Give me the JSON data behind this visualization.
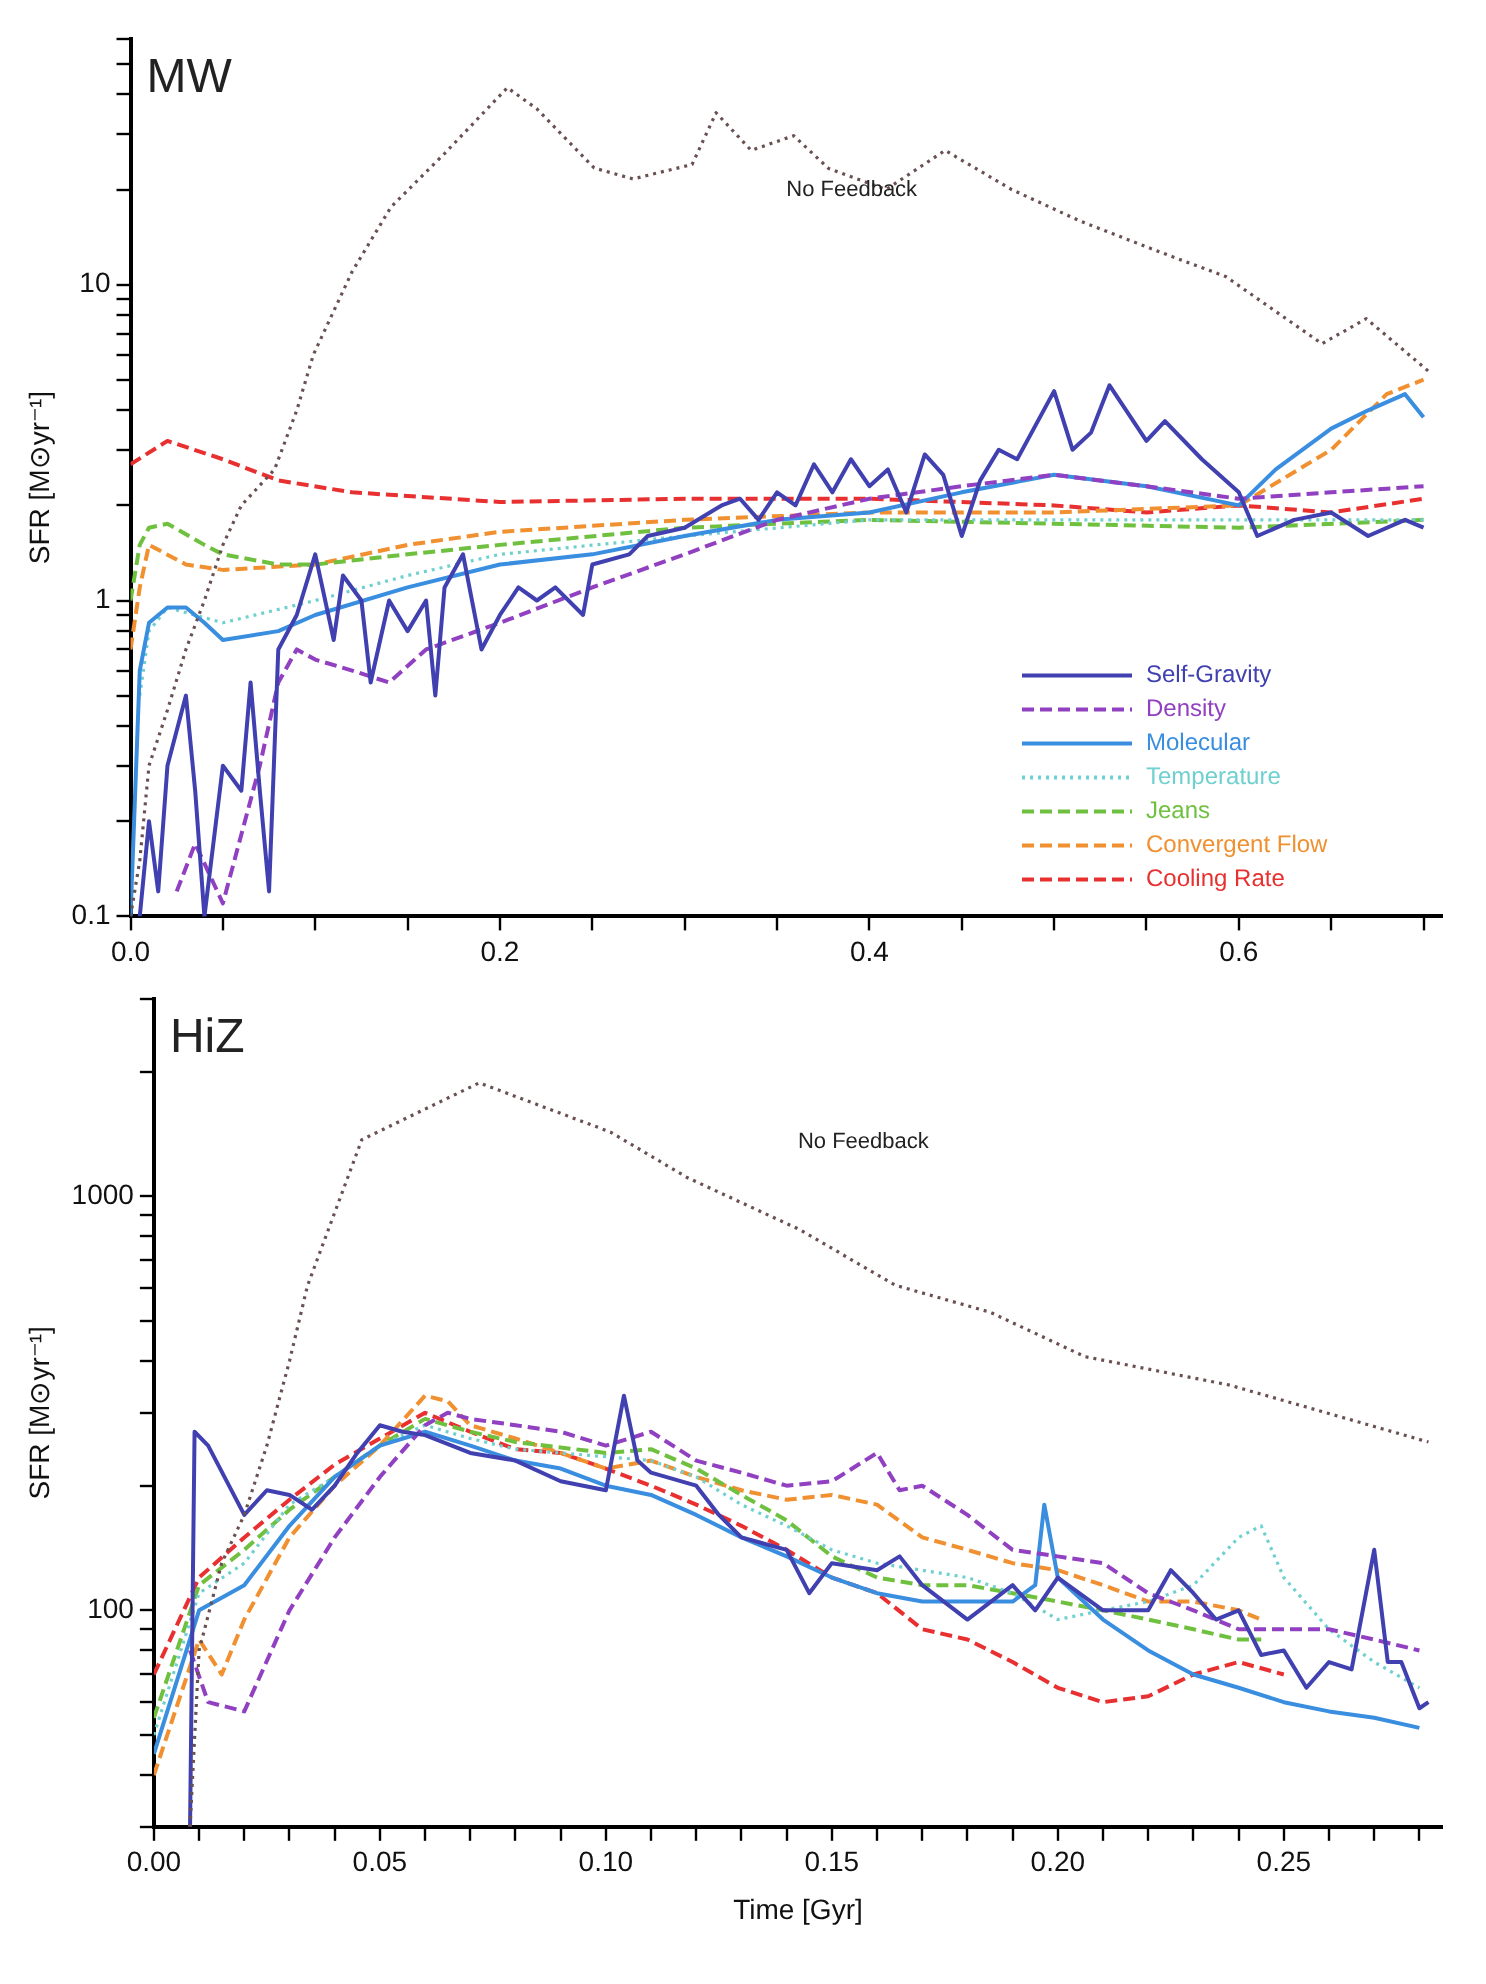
{
  "chart_data": [
    {
      "type": "line",
      "ylabel": "SFR [M⊙yr⁻¹]",
      "log": "y",
      "grid": false,
      "legend": "bottom right",
      "xlim": [
        0,
        0.71
      ],
      "xticks": [
        {
          "value": 0,
          "label": "0.0"
        },
        {
          "value": 0.05,
          "label": null
        },
        {
          "value": 0.1,
          "label": null
        },
        {
          "value": 0.15,
          "label": null
        },
        {
          "value": 0.2,
          "label": "0.2"
        },
        {
          "value": 0.25,
          "label": null
        },
        {
          "value": 0.3,
          "label": null
        },
        {
          "value": 0.35,
          "label": null
        },
        {
          "value": 0.4,
          "label": "0.4"
        },
        {
          "value": 0.45,
          "label": null
        },
        {
          "value": 0.5,
          "label": null
        },
        {
          "value": 0.55,
          "label": null
        },
        {
          "value": 0.6,
          "label": "0.6"
        },
        {
          "value": 0.65,
          "label": null
        },
        {
          "value": 0.7,
          "label": null
        }
      ],
      "ylim": [
        0.1,
        60
      ],
      "yticks": [
        0.1,
        {
          "value": 0.2,
          "label": null
        },
        {
          "value": 0.3,
          "label": null
        },
        {
          "value": 0.4,
          "label": null
        },
        {
          "value": 0.5,
          "label": null
        },
        {
          "value": 0.6,
          "label": null
        },
        {
          "value": 0.7,
          "label": null
        },
        {
          "value": 0.8,
          "label": null
        },
        {
          "value": 0.9,
          "label": null
        },
        1,
        {
          "value": 2,
          "label": null
        },
        {
          "value": 3,
          "label": null
        },
        {
          "value": 4,
          "label": null
        },
        {
          "value": 5,
          "label": null
        },
        {
          "value": 6,
          "label": null
        },
        {
          "value": 7,
          "label": null
        },
        {
          "value": 8,
          "label": null
        },
        {
          "value": 9,
          "label": null
        },
        10,
        {
          "value": 20,
          "label": null
        },
        {
          "value": 30,
          "label": null
        },
        {
          "value": 40,
          "label": null
        },
        {
          "value": 50,
          "label": null
        },
        {
          "value": 60,
          "label": null
        }
      ],
      "annotations": [
        "MW",
        "No Feedback"
      ],
      "series": [
        {
          "color": "#6a5050",
          "line_style": "dotted",
          "x": [
            0,
            0.005,
            0.01,
            0.02,
            0.03,
            0.04,
            0.05,
            0.06,
            0.078,
            0.09,
            0.099,
            0.12,
            0.141,
            0.17,
            0.204,
            0.22,
            0.251,
            0.272,
            0.304,
            0.317,
            0.336,
            0.359,
            0.378,
            0.409,
            0.441,
            0.477,
            0.514,
            0.557,
            0.593,
            0.645,
            0.669,
            0.703
          ],
          "values": [
            0.1,
            0.15,
            0.3,
            0.45,
            0.7,
            1.0,
            1.5,
            2.0,
            2.6,
            4.0,
            6.0,
            11,
            17.6,
            26,
            42,
            36,
            23.4,
            21.6,
            24,
            35,
            26.6,
            29.6,
            23.3,
            20,
            26.6,
            20,
            15.9,
            12.7,
            10.6,
            6.5,
            7.8,
            5.3
          ]
        },
        {
          "name": "Self-Gravity",
          "color": "#4040b0",
          "line_style": "solid",
          "x": [
            0.005,
            0.01,
            0.015,
            0.02,
            0.03,
            0.035,
            0.04,
            0.05,
            0.06,
            0.065,
            0.07,
            0.075,
            0.08,
            0.09,
            0.1,
            0.11,
            0.115,
            0.125,
            0.13,
            0.14,
            0.15,
            0.16,
            0.165,
            0.17,
            0.18,
            0.19,
            0.2,
            0.21,
            0.22,
            0.23,
            0.245,
            0.25,
            0.27,
            0.28,
            0.3,
            0.32,
            0.33,
            0.34,
            0.35,
            0.36,
            0.37,
            0.38,
            0.39,
            0.4,
            0.41,
            0.42,
            0.43,
            0.44,
            0.45,
            0.46,
            0.47,
            0.48,
            0.5,
            0.51,
            0.52,
            0.53,
            0.55,
            0.56,
            0.58,
            0.6,
            0.61,
            0.63,
            0.65,
            0.67,
            0.69,
            0.7
          ],
          "values": [
            0.1,
            0.2,
            0.12,
            0.3,
            0.5,
            0.25,
            0.1,
            0.3,
            0.25,
            0.55,
            0.25,
            0.12,
            0.7,
            0.9,
            1.4,
            0.75,
            1.2,
            1.0,
            0.55,
            1.0,
            0.8,
            1.0,
            0.5,
            1.1,
            1.4,
            0.7,
            0.9,
            1.1,
            1.0,
            1.1,
            0.9,
            1.3,
            1.4,
            1.6,
            1.7,
            2.0,
            2.1,
            1.8,
            2.2,
            2.0,
            2.7,
            2.2,
            2.8,
            2.3,
            2.6,
            1.9,
            2.9,
            2.5,
            1.6,
            2.4,
            3.0,
            2.8,
            4.6,
            3.0,
            3.4,
            4.8,
            3.2,
            3.7,
            2.8,
            2.2,
            1.6,
            1.8,
            1.9,
            1.6,
            1.8,
            1.7
          ]
        },
        {
          "name": "Density",
          "color": "#9040c0",
          "line_style": "dashed",
          "x": [
            0.025,
            0.035,
            0.05,
            0.07,
            0.08,
            0.09,
            0.1,
            0.12,
            0.14,
            0.16,
            0.2,
            0.25,
            0.3,
            0.35,
            0.4,
            0.45,
            0.5,
            0.55,
            0.6,
            0.65,
            0.7
          ],
          "values": [
            0.12,
            0.17,
            0.11,
            0.3,
            0.55,
            0.7,
            0.65,
            0.6,
            0.55,
            0.7,
            0.85,
            1.1,
            1.4,
            1.8,
            2.1,
            2.3,
            2.5,
            2.3,
            2.1,
            2.2,
            2.3
          ]
        },
        {
          "name": "Molecular",
          "color": "#3a8ee0",
          "line_style": "solid",
          "x": [
            0,
            0.005,
            0.01,
            0.02,
            0.03,
            0.04,
            0.05,
            0.08,
            0.1,
            0.15,
            0.2,
            0.25,
            0.3,
            0.35,
            0.4,
            0.45,
            0.5,
            0.55,
            0.6,
            0.62,
            0.65,
            0.67,
            0.69,
            0.7
          ],
          "values": [
            0.1,
            0.6,
            0.85,
            0.95,
            0.95,
            0.85,
            0.75,
            0.8,
            0.9,
            1.1,
            1.3,
            1.4,
            1.6,
            1.8,
            1.9,
            2.2,
            2.5,
            2.3,
            2.0,
            2.6,
            3.5,
            4.0,
            4.5,
            3.8
          ]
        },
        {
          "name": "Temperature",
          "color": "#70d0d0",
          "line_style": "dotted",
          "x": [
            0.005,
            0.01,
            0.02,
            0.05,
            0.1,
            0.15,
            0.2,
            0.3,
            0.4,
            0.5,
            0.6,
            0.7
          ],
          "values": [
            0.5,
            0.8,
            0.95,
            0.85,
            1.0,
            1.2,
            1.4,
            1.6,
            1.8,
            1.8,
            1.8,
            1.8
          ]
        },
        {
          "name": "Jeans",
          "color": "#70c040",
          "line_style": "dashed",
          "x": [
            0,
            0.005,
            0.01,
            0.02,
            0.04,
            0.05,
            0.08,
            0.1,
            0.15,
            0.2,
            0.3,
            0.4,
            0.5,
            0.6,
            0.7
          ],
          "values": [
            1.0,
            1.5,
            1.7,
            1.75,
            1.5,
            1.4,
            1.3,
            1.3,
            1.4,
            1.5,
            1.7,
            1.8,
            1.75,
            1.7,
            1.8
          ]
        },
        {
          "name": "Convergent Flow",
          "color": "#f09030",
          "line_style": "dashed",
          "x": [
            0,
            0.005,
            0.01,
            0.03,
            0.05,
            0.1,
            0.15,
            0.2,
            0.3,
            0.4,
            0.5,
            0.6,
            0.65,
            0.68,
            0.7
          ],
          "values": [
            0.7,
            1.1,
            1.5,
            1.3,
            1.25,
            1.3,
            1.5,
            1.65,
            1.8,
            1.9,
            1.9,
            2.0,
            3,
            4.5,
            5.0
          ]
        },
        {
          "name": "Cooling Rate",
          "color": "#e83030",
          "line_style": "dashed",
          "x": [
            0,
            0.02,
            0.05,
            0.08,
            0.12,
            0.2,
            0.3,
            0.4,
            0.5,
            0.55,
            0.6,
            0.65,
            0.7
          ],
          "values": [
            2.7,
            3.2,
            2.8,
            2.4,
            2.2,
            2.05,
            2.1,
            2.1,
            2.0,
            1.9,
            2.0,
            1.9,
            2.1
          ]
        }
      ]
    },
    {
      "type": "line",
      "ylabel": "SFR [M⊙yr⁻¹]",
      "xlabel": "Time [Gyr]",
      "log": "y",
      "grid": false,
      "legend": false,
      "xlim": [
        0,
        0.285
      ],
      "xticks": [
        {
          "value": 0,
          "label": "0.00"
        },
        {
          "value": 0.01,
          "label": null
        },
        {
          "value": 0.02,
          "label": null
        },
        {
          "value": 0.03,
          "label": null
        },
        {
          "value": 0.04,
          "label": null
        },
        {
          "value": 0.05,
          "label": "0.05"
        },
        {
          "value": 0.06,
          "label": null
        },
        {
          "value": 0.07,
          "label": null
        },
        {
          "value": 0.08,
          "label": null
        },
        {
          "value": 0.09,
          "label": null
        },
        {
          "value": 0.1,
          "label": "0.10"
        },
        {
          "value": 0.11,
          "label": null
        },
        {
          "value": 0.12,
          "label": null
        },
        {
          "value": 0.13,
          "label": null
        },
        {
          "value": 0.14,
          "label": null
        },
        {
          "value": 0.15,
          "label": "0.15"
        },
        {
          "value": 0.16,
          "label": null
        },
        {
          "value": 0.17,
          "label": null
        },
        {
          "value": 0.18,
          "label": null
        },
        {
          "value": 0.19,
          "label": null
        },
        {
          "value": 0.2,
          "label": "0.20"
        },
        {
          "value": 0.21,
          "label": null
        },
        {
          "value": 0.22,
          "label": null
        },
        {
          "value": 0.23,
          "label": null
        },
        {
          "value": 0.24,
          "label": null
        },
        {
          "value": 0.25,
          "label": "0.25"
        },
        {
          "value": 0.26,
          "label": null
        },
        {
          "value": 0.27,
          "label": null
        },
        {
          "value": 0.28,
          "label": null
        }
      ],
      "ylim": [
        30,
        3000
      ],
      "yticks": [
        {
          "value": 30,
          "label": null
        },
        {
          "value": 40,
          "label": null
        },
        {
          "value": 50,
          "label": null
        },
        {
          "value": 60,
          "label": null
        },
        {
          "value": 70,
          "label": null
        },
        {
          "value": 80,
          "label": null
        },
        {
          "value": 90,
          "label": null
        },
        100,
        {
          "value": 200,
          "label": null
        },
        {
          "value": 300,
          "label": null
        },
        {
          "value": 400,
          "label": null
        },
        {
          "value": 500,
          "label": null
        },
        {
          "value": 600,
          "label": null
        },
        {
          "value": 700,
          "label": null
        },
        {
          "value": 800,
          "label": null
        },
        {
          "value": 900,
          "label": null
        },
        1000,
        {
          "value": 2000,
          "label": null
        },
        {
          "value": 3000,
          "label": null
        }
      ],
      "annotations": [
        "HiZ",
        "No Feedback"
      ],
      "series": [
        {
          "color": "#6a5050",
          "line_style": "dotted",
          "x": [
            0.008,
            0.01,
            0.015,
            0.02,
            0.025,
            0.03,
            0.034,
            0.046,
            0.072,
            0.101,
            0.118,
            0.143,
            0.164,
            0.185,
            0.206,
            0.238,
            0.282
          ],
          "values": [
            30,
            80,
            130,
            170,
            250,
            400,
            609,
            1370,
            1880,
            1430,
            1110,
            830,
            610,
            525,
            410,
            350,
            255
          ]
        },
        {
          "color": "#4040b0",
          "line_style": "solid",
          "x": [
            0.008,
            0.009,
            0.012,
            0.02,
            0.025,
            0.03,
            0.035,
            0.04,
            0.045,
            0.05,
            0.055,
            0.06,
            0.07,
            0.08,
            0.09,
            0.1,
            0.104,
            0.107,
            0.11,
            0.12,
            0.125,
            0.13,
            0.14,
            0.145,
            0.15,
            0.16,
            0.165,
            0.17,
            0.18,
            0.19,
            0.195,
            0.2,
            0.21,
            0.22,
            0.225,
            0.23,
            0.235,
            0.24,
            0.245,
            0.25,
            0.255,
            0.26,
            0.265,
            0.27,
            0.273,
            0.276,
            0.28,
            0.282
          ],
          "values": [
            30,
            270,
            250,
            170,
            195,
            190,
            175,
            200,
            240,
            280,
            270,
            265,
            240,
            230,
            205,
            195,
            330,
            230,
            215,
            200,
            170,
            150,
            140,
            110,
            130,
            125,
            135,
            115,
            95,
            115,
            100,
            120,
            100,
            100,
            125,
            110,
            95,
            100,
            78,
            80,
            65,
            75,
            72,
            140,
            75,
            75,
            58,
            60
          ]
        },
        {
          "color": "#9040c0",
          "line_style": "dashed",
          "x": [
            0.008,
            0.012,
            0.02,
            0.03,
            0.04,
            0.05,
            0.06,
            0.065,
            0.07,
            0.08,
            0.09,
            0.1,
            0.11,
            0.12,
            0.13,
            0.14,
            0.15,
            0.16,
            0.165,
            0.17,
            0.18,
            0.19,
            0.2,
            0.21,
            0.22,
            0.23,
            0.24,
            0.25,
            0.26,
            0.27,
            0.28
          ],
          "values": [
            80,
            60,
            57,
            100,
            150,
            210,
            280,
            300,
            290,
            280,
            270,
            250,
            270,
            230,
            215,
            200,
            205,
            240,
            195,
            200,
            170,
            140,
            135,
            130,
            110,
            100,
            90,
            90,
            90,
            85,
            80
          ]
        },
        {
          "color": "#3a8ee0",
          "line_style": "solid",
          "x": [
            0,
            0.01,
            0.02,
            0.03,
            0.04,
            0.05,
            0.06,
            0.07,
            0.08,
            0.09,
            0.1,
            0.11,
            0.12,
            0.13,
            0.14,
            0.15,
            0.16,
            0.17,
            0.18,
            0.19,
            0.195,
            0.197,
            0.2,
            0.21,
            0.22,
            0.23,
            0.24,
            0.25,
            0.26,
            0.27,
            0.28
          ],
          "values": [
            45,
            100,
            115,
            160,
            210,
            250,
            270,
            250,
            230,
            220,
            200,
            190,
            170,
            150,
            135,
            120,
            110,
            105,
            105,
            105,
            115,
            180,
            120,
            95,
            80,
            70,
            65,
            60,
            57,
            55,
            52
          ]
        },
        {
          "color": "#70d0d0",
          "line_style": "dotted",
          "x": [
            0,
            0.01,
            0.02,
            0.03,
            0.04,
            0.05,
            0.06,
            0.07,
            0.08,
            0.1,
            0.11,
            0.12,
            0.13,
            0.14,
            0.15,
            0.16,
            0.17,
            0.18,
            0.19,
            0.2,
            0.21,
            0.22,
            0.23,
            0.24,
            0.245,
            0.25,
            0.26,
            0.27,
            0.28
          ],
          "values": [
            50,
            110,
            130,
            180,
            210,
            250,
            280,
            260,
            245,
            235,
            230,
            210,
            180,
            160,
            140,
            130,
            125,
            120,
            110,
            95,
            100,
            105,
            115,
            150,
            160,
            120,
            90,
            75,
            65
          ]
        },
        {
          "color": "#70c040",
          "line_style": "dashed",
          "x": [
            0,
            0.01,
            0.02,
            0.03,
            0.04,
            0.05,
            0.06,
            0.07,
            0.08,
            0.1,
            0.11,
            0.12,
            0.13,
            0.14,
            0.15,
            0.16,
            0.17,
            0.18,
            0.19,
            0.2,
            0.21,
            0.22,
            0.23,
            0.24,
            0.245
          ],
          "values": [
            55,
            115,
            140,
            175,
            210,
            250,
            290,
            270,
            255,
            240,
            245,
            220,
            190,
            165,
            135,
            120,
            115,
            115,
            110,
            105,
            100,
            95,
            90,
            85,
            85
          ]
        },
        {
          "color": "#f09030",
          "line_style": "dashed",
          "x": [
            0,
            0.01,
            0.015,
            0.02,
            0.03,
            0.04,
            0.05,
            0.06,
            0.065,
            0.07,
            0.08,
            0.09,
            0.1,
            0.11,
            0.12,
            0.13,
            0.14,
            0.15,
            0.16,
            0.17,
            0.18,
            0.19,
            0.2,
            0.21,
            0.22,
            0.23,
            0.24,
            0.245
          ],
          "values": [
            40,
            85,
            70,
            95,
            150,
            200,
            250,
            330,
            320,
            280,
            260,
            240,
            220,
            230,
            210,
            195,
            185,
            190,
            180,
            150,
            140,
            130,
            125,
            115,
            105,
            105,
            100,
            95
          ]
        },
        {
          "color": "#e83030",
          "line_style": "dashed",
          "x": [
            0,
            0.01,
            0.02,
            0.03,
            0.04,
            0.05,
            0.06,
            0.07,
            0.08,
            0.09,
            0.1,
            0.11,
            0.12,
            0.13,
            0.14,
            0.15,
            0.16,
            0.17,
            0.18,
            0.19,
            0.2,
            0.21,
            0.22,
            0.23,
            0.24,
            0.25
          ],
          "values": [
            70,
            120,
            150,
            185,
            225,
            260,
            300,
            270,
            245,
            240,
            220,
            200,
            180,
            160,
            140,
            120,
            110,
            90,
            85,
            75,
            65,
            60,
            62,
            70,
            75,
            70
          ]
        }
      ]
    }
  ]
}
